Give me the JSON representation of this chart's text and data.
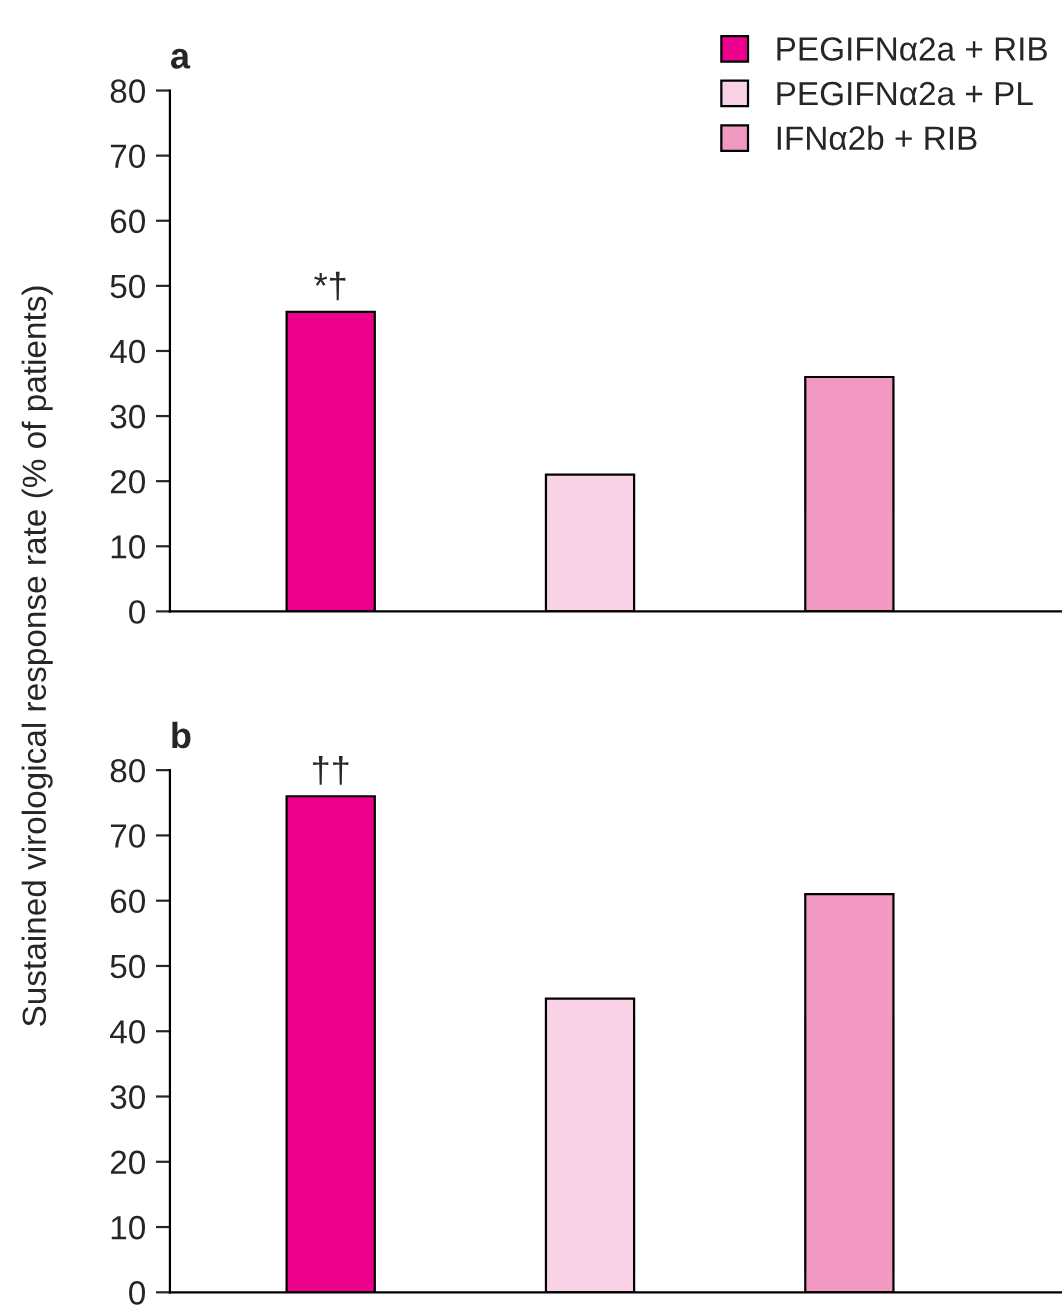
{
  "chart_data": [
    {
      "type": "bar",
      "title": "a",
      "ylabel": "Sustained virological response rate (% of patients)",
      "categories": [
        null,
        null,
        null
      ],
      "ylim": [
        0,
        80
      ],
      "yticks": [
        0,
        10,
        20,
        30,
        40,
        50,
        60,
        70,
        80
      ],
      "legend": "top right",
      "grid": false,
      "series": [
        {
          "name": "PEGIFNα2a + RIB",
          "color": "#ec008c",
          "values": [
            46,
            null,
            null
          ]
        },
        {
          "name": "PEGIFNα2a + PL",
          "color": "#f9d3e5",
          "values": [
            null,
            21,
            null
          ]
        },
        {
          "name": "IFNα2b + RIB",
          "color": "#f299c1",
          "values": [
            null,
            null,
            36
          ]
        }
      ],
      "annotations": [
        {
          "text": "*†",
          "y": 46
        }
      ]
    },
    {
      "type": "bar",
      "title": "b",
      "categories": [
        null,
        null,
        null
      ],
      "ylim": [
        0,
        80
      ],
      "yticks": [
        0,
        10,
        20,
        30,
        40,
        50,
        60,
        70,
        80
      ],
      "legend": false,
      "grid": false,
      "series": [
        {
          "color": "#ec008c",
          "values": [
            76,
            null,
            null
          ]
        },
        {
          "color": "#f9d3e5",
          "values": [
            null,
            45,
            null
          ]
        },
        {
          "color": "#f299c1",
          "values": [
            null,
            null,
            61
          ]
        }
      ],
      "annotations": [
        {
          "text": "††",
          "y": 76
        }
      ]
    }
  ]
}
